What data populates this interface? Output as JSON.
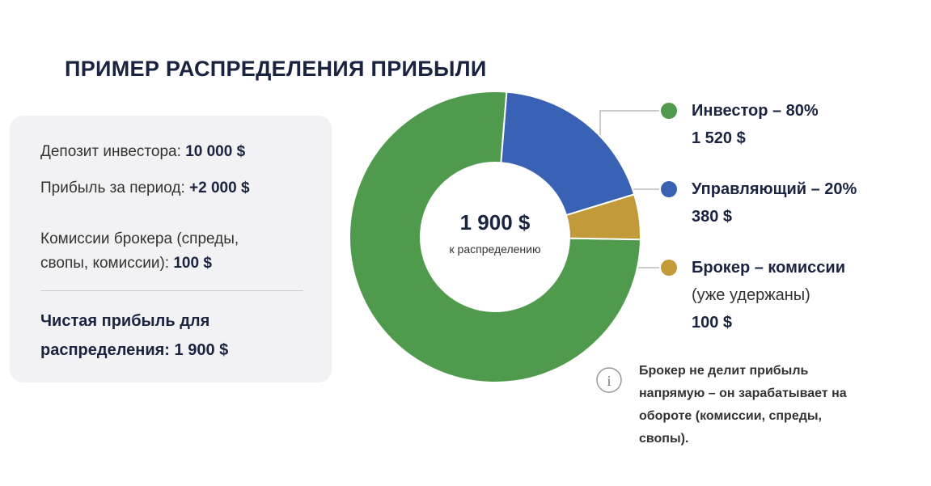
{
  "title": "ПРИМЕР РАСПРЕДЕЛЕНИЯ ПРИБЫЛИ",
  "panel": {
    "rows": [
      {
        "label": "Депозит инвестора:",
        "value": "10 000 $"
      },
      {
        "label": "Прибыль за период:",
        "value": "+2 000 $"
      },
      {
        "label": "Комиссии брокера (спреды, свопы, комиссии):",
        "value": "100 $"
      }
    ],
    "total": {
      "label": "Чистая прибыль для распределения:",
      "value": "1 900 $"
    }
  },
  "chart_data": {
    "type": "pie",
    "center_value": "1 900 $",
    "center_label": "к распределению",
    "categories": [
      "Инвестор – 80%",
      "Управляющий – 20%",
      "Брокер – комиссии"
    ],
    "category_note": "(уже удержаны)",
    "values": [
      1520,
      380,
      100
    ],
    "value_labels": [
      "1 520 $",
      "380 $",
      "100 $"
    ],
    "colors": [
      "#4f9a4c",
      "#3a62b4",
      "#c29a3a"
    ]
  },
  "note": "Брокер не делит прибыль напрямую – он зарабатывает на обороте (комиссии, спреды, свопы)."
}
